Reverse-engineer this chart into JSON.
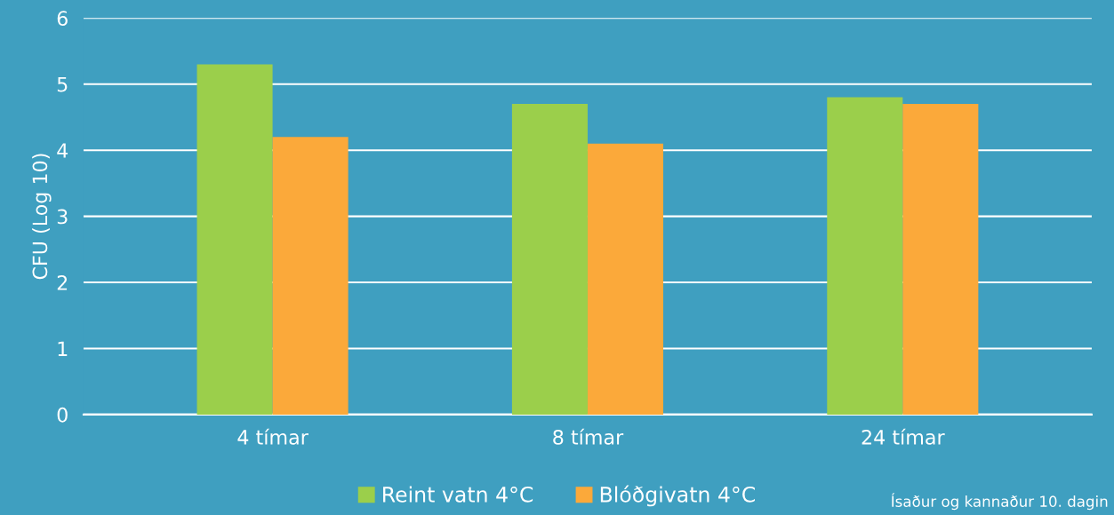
{
  "chart_data": {
    "type": "bar",
    "ylabel": "CFU (Log 10)",
    "categories": [
      "4 tímar",
      "8 tímar",
      "24 tímar"
    ],
    "series": [
      {
        "name": "Reint vatn 4°C",
        "color": "#9bcf4b",
        "values": [
          5.3,
          4.7,
          4.8
        ]
      },
      {
        "name": "Blóðgivatn 4°C",
        "color": "#fba93a",
        "values": [
          4.2,
          4.1,
          4.7
        ]
      }
    ],
    "ylim": [
      0,
      6
    ],
    "yticks": [
      0,
      1,
      2,
      3,
      4,
      5,
      6
    ],
    "grid": "y",
    "legend": "bottom",
    "annotations": [
      "Ísaður og kannaður 10. dagin"
    ]
  }
}
